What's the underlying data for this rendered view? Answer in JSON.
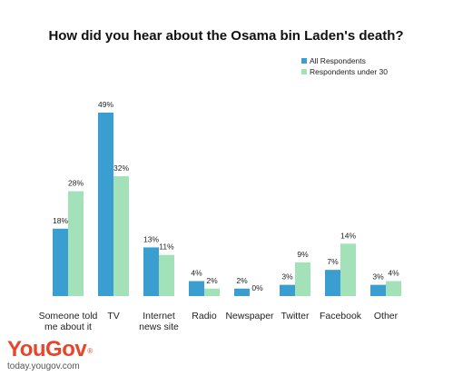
{
  "chart_data": {
    "type": "bar",
    "title": "How did you hear about the Osama bin Laden's death?",
    "categories": [
      [
        "Someone told",
        "me about it"
      ],
      [
        "TV"
      ],
      [
        "Internet",
        "news site"
      ],
      [
        "Radio"
      ],
      [
        "Newspaper"
      ],
      [
        "Twitter"
      ],
      [
        "Facebook"
      ],
      [
        "Other"
      ]
    ],
    "series": [
      {
        "name": "All Respondents",
        "color": "#3b9ed1",
        "values": [
          18,
          49,
          13,
          4,
          2,
          3,
          7,
          3
        ],
        "labels": [
          "18%",
          "49%",
          "13%",
          "4%",
          "2%",
          "3%",
          "7%",
          "3%"
        ]
      },
      {
        "name": "Respondents under 30",
        "color": "#a3e1b9",
        "values": [
          28,
          32,
          11,
          2,
          0,
          9,
          14,
          4
        ],
        "labels": [
          "28%",
          "32%",
          "11%",
          "2%",
          "0%",
          "9%",
          "14%",
          "4%"
        ]
      }
    ],
    "ylim": [
      0,
      50
    ],
    "legend": "top-right",
    "grid": false
  },
  "brand": {
    "name": "YouGov",
    "mark": "®",
    "url": "today.yougov.com"
  }
}
